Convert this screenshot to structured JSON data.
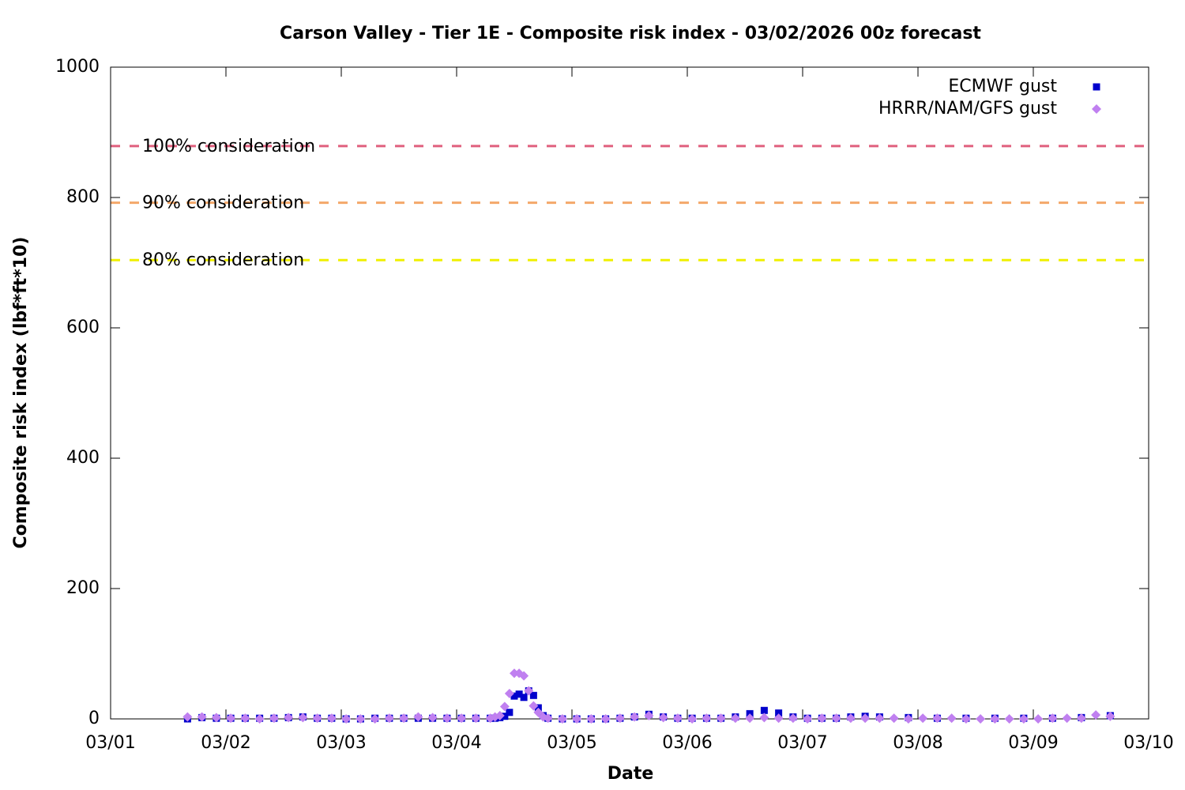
{
  "chart_data": {
    "type": "scatter",
    "title": "Carson Valley - Tier 1E - Composite risk index - 03/02/2026 00z forecast",
    "x_label": "Date",
    "y_label": "Composite risk index (lbf*ft*10)",
    "xlim": [
      1,
      10
    ],
    "xticks": [
      {
        "value": 1,
        "label": "03/01"
      },
      {
        "value": 2,
        "label": "03/02"
      },
      {
        "value": 3,
        "label": "03/03"
      },
      {
        "value": 4,
        "label": "03/04"
      },
      {
        "value": 5,
        "label": "03/05"
      },
      {
        "value": 6,
        "label": "03/06"
      },
      {
        "value": 7,
        "label": "03/07"
      },
      {
        "value": 8,
        "label": "03/08"
      },
      {
        "value": 9,
        "label": "03/09"
      },
      {
        "value": 10,
        "label": "03/10"
      }
    ],
    "ylim": [
      0,
      1000
    ],
    "yticks": [
      0,
      200,
      400,
      600,
      800,
      1000
    ],
    "grid": false,
    "legend": "top-right",
    "reference_lines": [
      {
        "label": "100% consideration",
        "value": 879,
        "color": "#e0607e"
      },
      {
        "label": "90% consideration",
        "value": 792,
        "color": "#f4a86a"
      },
      {
        "label": "80% consideration",
        "value": 704,
        "color": "#f0f000"
      }
    ],
    "series": [
      {
        "name": "ECMWF gust",
        "color": "#0000cc",
        "marker": "square",
        "x": [
          1.667,
          1.792,
          1.917,
          2.042,
          2.167,
          2.292,
          2.417,
          2.542,
          2.667,
          2.792,
          2.917,
          3.042,
          3.167,
          3.292,
          3.417,
          3.542,
          3.667,
          3.792,
          3.917,
          4.042,
          4.167,
          4.292,
          4.333,
          4.375,
          4.417,
          4.458,
          4.5,
          4.542,
          4.583,
          4.625,
          4.667,
          4.708,
          4.75,
          4.792,
          4.917,
          5.042,
          5.167,
          5.292,
          5.417,
          5.542,
          5.667,
          5.792,
          5.917,
          6.042,
          6.167,
          6.292,
          6.417,
          6.542,
          6.667,
          6.792,
          6.917,
          7.042,
          7.167,
          7.292,
          7.417,
          7.542,
          7.667,
          7.917,
          8.167,
          8.417,
          8.667,
          8.917,
          9.167,
          9.417,
          9.667
        ],
        "values": [
          0,
          2,
          1,
          1,
          1,
          1,
          1,
          2,
          3,
          1,
          1,
          0,
          0,
          1,
          1,
          1,
          1,
          1,
          1,
          1,
          1,
          1,
          1,
          2,
          4,
          10,
          35,
          38,
          33,
          43,
          36,
          17,
          5,
          1,
          0,
          0,
          0,
          0,
          1,
          3,
          7,
          3,
          1,
          1,
          1,
          1,
          3,
          8,
          13,
          9,
          3,
          1,
          1,
          1,
          3,
          4,
          3,
          2,
          1,
          1,
          1,
          1,
          1,
          2,
          5
        ]
      },
      {
        "name": "HRRR/NAM/GFS gust",
        "color": "#c080f0",
        "marker": "diamond",
        "x": [
          1.667,
          1.792,
          1.917,
          2.042,
          2.167,
          2.292,
          2.417,
          2.542,
          2.667,
          2.792,
          2.917,
          3.042,
          3.167,
          3.292,
          3.417,
          3.542,
          3.667,
          3.792,
          3.917,
          4.042,
          4.167,
          4.292,
          4.333,
          4.375,
          4.417,
          4.458,
          4.5,
          4.542,
          4.583,
          4.625,
          4.667,
          4.708,
          4.75,
          4.792,
          4.917,
          5.042,
          5.167,
          5.292,
          5.417,
          5.542,
          5.667,
          5.792,
          5.917,
          6.042,
          6.167,
          6.292,
          6.417,
          6.542,
          6.667,
          6.792,
          6.917,
          7.042,
          7.167,
          7.292,
          7.417,
          7.542,
          7.667,
          7.792,
          7.917,
          8.042,
          8.167,
          8.292,
          8.417,
          8.542,
          8.667,
          8.792,
          8.917,
          9.042,
          9.167,
          9.292,
          9.417,
          9.542,
          9.667
        ],
        "values": [
          3,
          3,
          2,
          1,
          1,
          0,
          1,
          2,
          2,
          1,
          1,
          0,
          0,
          0,
          1,
          1,
          3,
          2,
          1,
          1,
          1,
          1,
          3,
          5,
          19,
          39,
          70,
          70,
          66,
          43,
          20,
          10,
          3,
          1,
          0,
          0,
          0,
          0,
          1,
          3,
          5,
          2,
          1,
          0,
          1,
          1,
          1,
          1,
          2,
          1,
          1,
          0,
          1,
          1,
          1,
          1,
          1,
          1,
          0,
          1,
          1,
          1,
          0,
          0,
          0,
          0,
          0,
          0,
          1,
          1,
          1,
          6,
          4
        ]
      }
    ]
  }
}
